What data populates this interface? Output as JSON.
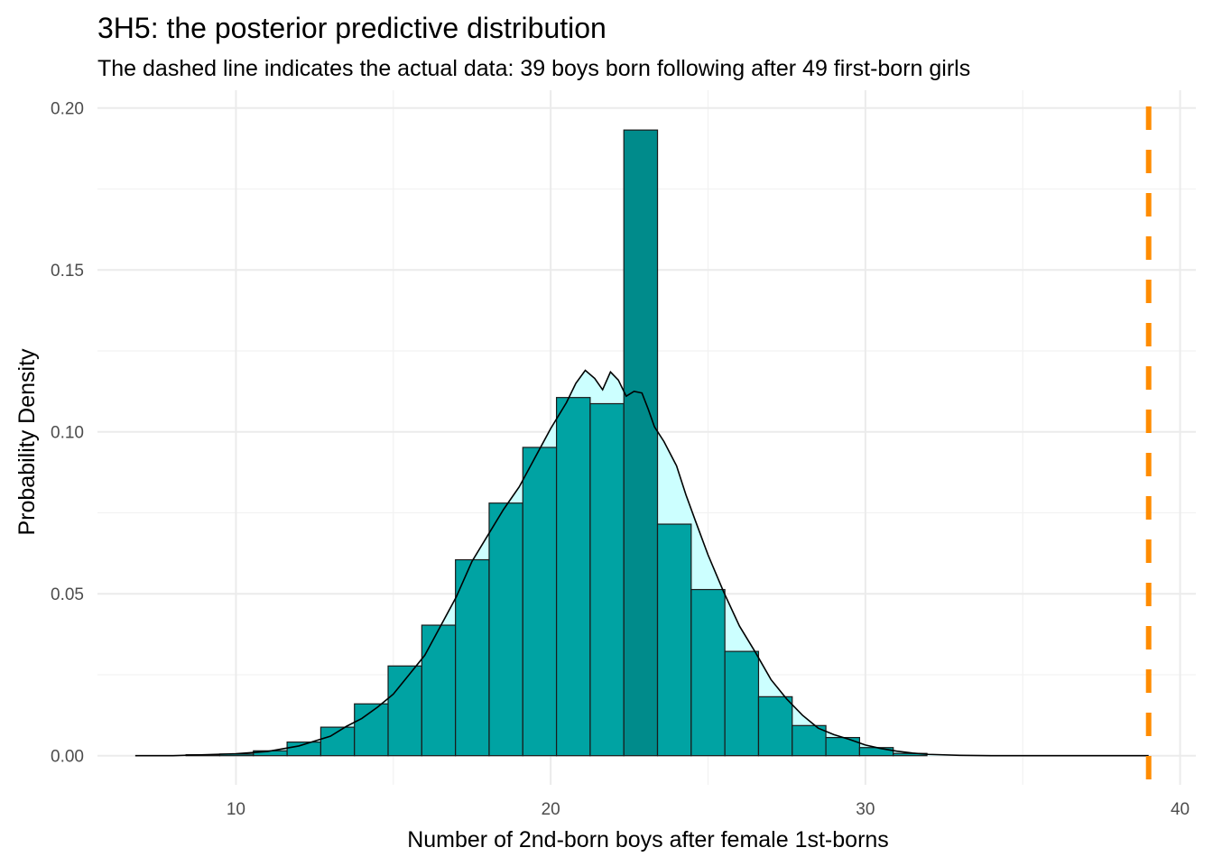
{
  "chart_data": {
    "type": "bar",
    "title": "3H5: the posterior predictive distribution",
    "subtitle": "The dashed line indicates the actual data: 39 boys born following after 49 first-born girls",
    "xlabel": "Number of 2nd-born boys after female 1st-borns",
    "ylabel": "Probability Density",
    "xlim": [
      5.6,
      40.5
    ],
    "ylim": [
      -0.009,
      0.2055
    ],
    "x_ticks": [
      10,
      20,
      30,
      40
    ],
    "x_tick_labels": [
      "10",
      "20",
      "30",
      "40"
    ],
    "y_ticks": [
      0,
      0.05,
      0.1,
      0.15,
      0.2
    ],
    "y_tick_labels": [
      "0.00",
      "0.05",
      "0.10",
      "0.15",
      "0.20"
    ],
    "grid": true,
    "histogram": {
      "bin_width": 1.07,
      "fill": "#00a3a3",
      "highlight_fill": "#008b8b",
      "border": "#1a1a1a",
      "bins": [
        {
          "x": 8.95,
          "value": 0.0003
        },
        {
          "x": 10.02,
          "value": 0.0005
        },
        {
          "x": 11.09,
          "value": 0.0015
        },
        {
          "x": 12.16,
          "value": 0.0042
        },
        {
          "x": 13.23,
          "value": 0.0088
        },
        {
          "x": 14.3,
          "value": 0.016
        },
        {
          "x": 15.37,
          "value": 0.0277
        },
        {
          "x": 16.44,
          "value": 0.0403
        },
        {
          "x": 17.51,
          "value": 0.0605
        },
        {
          "x": 18.58,
          "value": 0.078
        },
        {
          "x": 19.65,
          "value": 0.0952
        },
        {
          "x": 20.72,
          "value": 0.1106
        },
        {
          "x": 21.79,
          "value": 0.1087
        },
        {
          "x": 22.86,
          "value": 0.1932,
          "highlight": true
        },
        {
          "x": 23.93,
          "value": 0.0715
        },
        {
          "x": 25.0,
          "value": 0.0513
        },
        {
          "x": 26.07,
          "value": 0.0322
        },
        {
          "x": 27.14,
          "value": 0.0182
        },
        {
          "x": 28.21,
          "value": 0.0093
        },
        {
          "x": 29.28,
          "value": 0.0056
        },
        {
          "x": 30.35,
          "value": 0.0025
        },
        {
          "x": 31.42,
          "value": 0.0007
        }
      ]
    },
    "density": {
      "fill": "#ccffff",
      "stroke": "#000000",
      "x": [
        6.8,
        8.0,
        9.0,
        10.0,
        11.0,
        12.0,
        12.5,
        13.0,
        13.5,
        14.0,
        14.5,
        15.0,
        15.5,
        16.0,
        16.5,
        17.0,
        17.5,
        18.0,
        18.5,
        19.0,
        19.5,
        20.0,
        20.5,
        20.8,
        21.1,
        21.4,
        21.65,
        21.9,
        22.15,
        22.4,
        22.65,
        22.9,
        23.1,
        23.3,
        23.6,
        24.0,
        24.3,
        24.6,
        25.0,
        25.5,
        26.0,
        26.5,
        27.0,
        27.5,
        28.0,
        28.5,
        29.0,
        29.5,
        30.0,
        30.5,
        31.0,
        31.5,
        32.0,
        33.0,
        34.0,
        35.0,
        36.0,
        37.0,
        38.0,
        39.0
      ],
      "y": [
        0.0,
        0.0,
        0.0003,
        0.0006,
        0.0013,
        0.003,
        0.0045,
        0.006,
        0.009,
        0.0115,
        0.015,
        0.019,
        0.025,
        0.031,
        0.04,
        0.049,
        0.06,
        0.068,
        0.076,
        0.083,
        0.092,
        0.101,
        0.109,
        0.115,
        0.119,
        0.1165,
        0.113,
        0.1185,
        0.116,
        0.111,
        0.1125,
        0.112,
        0.107,
        0.1015,
        0.097,
        0.0895,
        0.0805,
        0.0725,
        0.062,
        0.0505,
        0.04,
        0.032,
        0.0235,
        0.0175,
        0.0125,
        0.0085,
        0.0065,
        0.005,
        0.0033,
        0.0022,
        0.0014,
        0.0008,
        0.0004,
        0.0001,
        0.0,
        0.0,
        0.0,
        0.0,
        0.0,
        0.0
      ]
    },
    "reference_line": {
      "x": 39,
      "color": "#ff8c00",
      "style": "dashed"
    }
  }
}
